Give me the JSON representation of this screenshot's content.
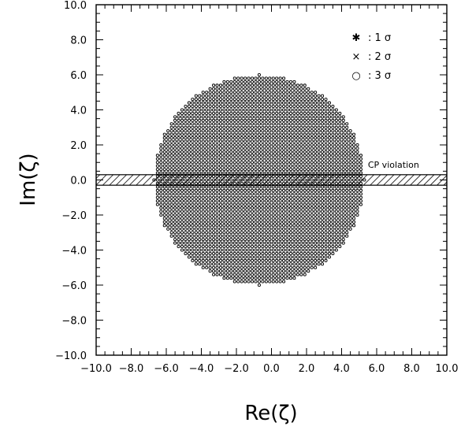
{
  "chart_data": {
    "type": "scatter",
    "title": "",
    "xlabel": "Re(ζ)",
    "ylabel": "Im(ζ)",
    "xlim": [
      -10.0,
      10.0
    ],
    "ylim": [
      -10.0,
      10.0
    ],
    "xticks": [
      -10,
      -8,
      -6,
      -4,
      -2,
      0,
      2,
      4,
      6,
      8,
      10
    ],
    "yticks": [
      -10,
      -8,
      -6,
      -4,
      -2,
      0,
      2,
      4,
      6,
      8,
      10
    ],
    "xtick_labels": [
      "−10.0",
      "−8.0",
      "−6.0",
      "−4.0",
      "−2.0",
      "0.0",
      "2.0",
      "4.0",
      "6.0",
      "8.0",
      "10.0"
    ],
    "ytick_labels": [
      "−10.0",
      "−8.0",
      "−6.0",
      "−4.0",
      "−2.0",
      "0.0",
      "2.0",
      "4.0",
      "6.0",
      "8.0",
      "10.0"
    ],
    "grid": false,
    "legend_position": "top-right",
    "legend": [
      {
        "symbol": "✱",
        "text": ": 1 σ"
      },
      {
        "symbol": "×",
        "text": ": 2 σ"
      },
      {
        "symbol": "○",
        "text": ": 3 σ"
      }
    ],
    "allowed_region": {
      "shape": "disk",
      "center": [
        -0.7,
        0.0
      ],
      "radius": 6.0,
      "grid_step": 0.2,
      "point_symbol": "○",
      "confidence_level": "3 σ"
    },
    "cp_band": {
      "label": "CP violation",
      "y_range": [
        -0.3,
        0.3
      ],
      "x_range": [
        -10.0,
        10.0
      ],
      "label_position": [
        5.5,
        0.7
      ]
    }
  }
}
